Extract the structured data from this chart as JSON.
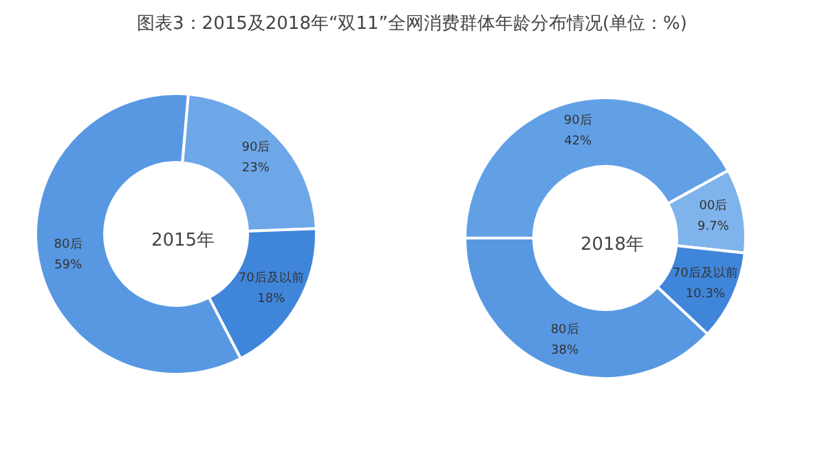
{
  "chart_data": [
    {
      "type": "donut",
      "title": "图表3：2015及2018年“双11”全网消费群体年龄分布情况(单位：%)",
      "annotations": [
        "2015年"
      ],
      "categories": [
        "90后",
        "70后及以前",
        "80后"
      ],
      "values": [
        23,
        18,
        59
      ],
      "value_labels": [
        "23%",
        "18%",
        "59%"
      ],
      "colors": [
        "#6ea7e8",
        "#3f86db",
        "#5898e2"
      ],
      "legend": false
    },
    {
      "type": "donut",
      "annotations": [
        "2018年"
      ],
      "categories": [
        "90后",
        "00后",
        "70后及以前",
        "80后"
      ],
      "values": [
        42,
        9.7,
        10.3,
        38
      ],
      "value_labels": [
        "42%",
        "9.7%",
        "10.3%",
        "38%"
      ],
      "colors": [
        "#62a0e6",
        "#7fb3ec",
        "#3f86db",
        "#5898e2"
      ],
      "legend": false
    }
  ]
}
